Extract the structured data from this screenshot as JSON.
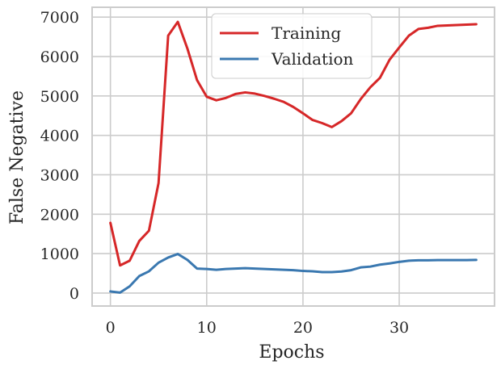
{
  "chart_data": {
    "type": "line",
    "title": "",
    "xlabel": "Epochs",
    "ylabel": "False Negative",
    "xlim": [
      -1.9,
      39.9
    ],
    "ylim": [
      -330,
      7250
    ],
    "xticks": [
      0,
      10,
      20,
      30
    ],
    "yticks": [
      0,
      1000,
      2000,
      3000,
      4000,
      5000,
      6000,
      7000
    ],
    "grid": true,
    "legend": "top-center",
    "x": [
      0,
      1,
      2,
      3,
      4,
      5,
      6,
      7,
      8,
      9,
      10,
      11,
      12,
      13,
      14,
      15,
      16,
      17,
      18,
      19,
      20,
      21,
      22,
      23,
      24,
      25,
      26,
      27,
      28,
      29,
      30,
      31,
      32,
      33,
      34,
      35,
      36,
      37,
      38
    ],
    "series": [
      {
        "name": "Training",
        "color": "#d62728",
        "values": [
          1780,
          700,
          820,
          1320,
          1580,
          2790,
          6530,
          6880,
          6200,
          5400,
          4980,
          4890,
          4950,
          5050,
          5090,
          5060,
          5000,
          4930,
          4850,
          4720,
          4560,
          4390,
          4310,
          4210,
          4360,
          4560,
          4920,
          5220,
          5460,
          5920,
          6230,
          6530,
          6700,
          6730,
          6780,
          6790,
          6800,
          6810,
          6820
        ]
      },
      {
        "name": "Validation",
        "color": "#3a78b0",
        "values": [
          40,
          10,
          170,
          430,
          550,
          770,
          900,
          990,
          840,
          620,
          610,
          590,
          610,
          620,
          630,
          620,
          610,
          600,
          590,
          580,
          560,
          550,
          530,
          530,
          545,
          580,
          650,
          670,
          720,
          750,
          790,
          820,
          830,
          830,
          835,
          835,
          835,
          835,
          840
        ]
      }
    ]
  }
}
